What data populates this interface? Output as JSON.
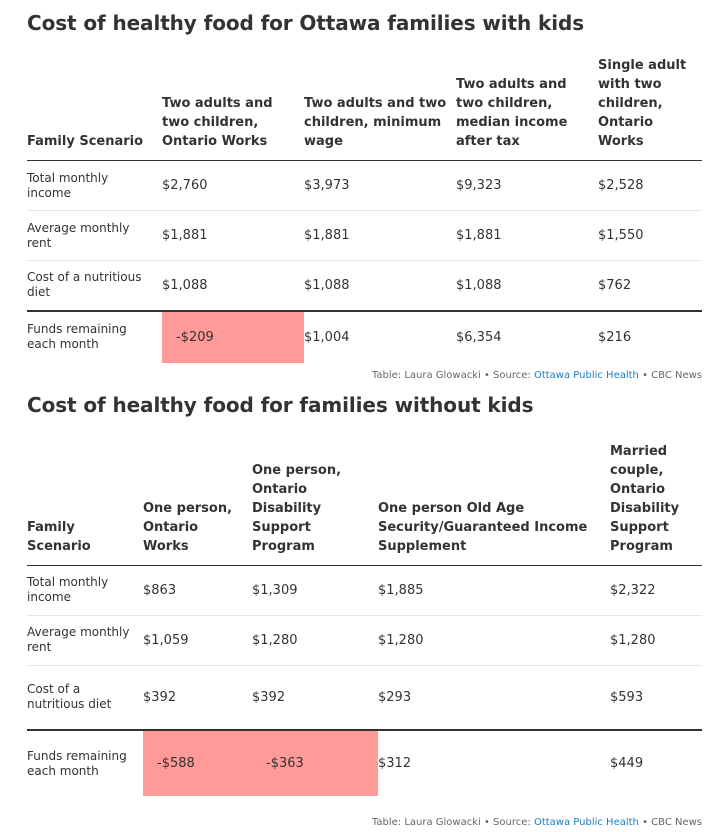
{
  "table1": {
    "title": "Cost of healthy food for Ottawa families with kids",
    "headers": [
      "Family Scenario",
      "Two adults and two children, Ontario Works",
      "Two adults and two children, minimum wage",
      "Two adults and two children, median income after tax",
      "Single adult with two children, Ontario Works"
    ],
    "rows": [
      {
        "label": "Total monthly income",
        "values": [
          "$2,760",
          "$3,973",
          "$9,323",
          "$2,528"
        ]
      },
      {
        "label": "Average monthly rent",
        "values": [
          "$1,881",
          "$1,881",
          "$1,881",
          "$1,550"
        ]
      },
      {
        "label": "Cost of a nutritious diet",
        "values": [
          "$1,088",
          "$1,088",
          "$1,088",
          "$762"
        ]
      },
      {
        "label": "Funds remaining each month",
        "values": [
          "-$209",
          "$1,004",
          "$6,354",
          "$216"
        ]
      }
    ],
    "source": {
      "prefix": "Table: Laura Glowacki • Source: ",
      "link": "Ottawa Public Health",
      "suffix": " • CBC News"
    }
  },
  "table2": {
    "title": "Cost of healthy food for families without kids",
    "headers": [
      "Family Scenario",
      "One person, Ontario Works",
      "One person, Ontario Disability Support Program",
      "One person Old Age Security/Guaranteed Income Supplement",
      "Married couple, Ontario Disability Support Program"
    ],
    "rows": [
      {
        "label": "Total monthly income",
        "values": [
          "$863",
          "$1,309",
          "$1,885",
          "$2,322"
        ]
      },
      {
        "label": "Average monthly rent",
        "values": [
          "$1,059",
          "$1,280",
          "$1,280",
          "$1,280"
        ]
      },
      {
        "label": "Cost of a nutritious diet",
        "values": [
          "$392",
          "$392",
          "$293",
          "$593"
        ]
      },
      {
        "label": "Funds remaining each month",
        "values": [
          "-$588",
          "-$363",
          "$312",
          "$449"
        ]
      }
    ],
    "source": {
      "prefix": "Table: Laura Glowacki • Source: ",
      "link": "Ottawa Public Health",
      "suffix": " • CBC News"
    }
  },
  "colors": {
    "negative_highlight": "#ff9a98",
    "link": "#1a7fc2",
    "text": "#333333"
  }
}
